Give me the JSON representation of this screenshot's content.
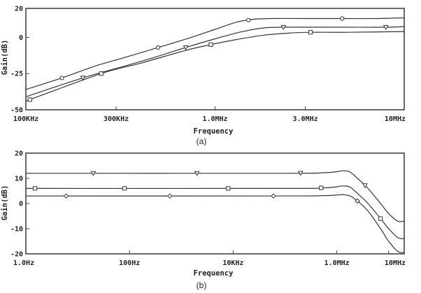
{
  "chart_data": [
    {
      "type": "line",
      "caption": "(a)",
      "xlabel": "Frequency",
      "ylabel": "Gain(dB)",
      "xscale": "log",
      "xlim": [
        100000,
        10000000
      ],
      "ylim": [
        -50,
        20
      ],
      "xticks": [
        {
          "v": 100000,
          "label": "100KHz"
        },
        {
          "v": 300000,
          "label": "300KHz"
        },
        {
          "v": 1000000,
          "label": "1.0MHz"
        },
        {
          "v": 3000000,
          "label": "3.0MHz"
        },
        {
          "v": 10000000,
          "label": "10MHz"
        }
      ],
      "yticks": [
        {
          "v": 20,
          "label": "20"
        },
        {
          "v": 0,
          "label": "0"
        },
        {
          "v": -25,
          "label": "-25"
        },
        {
          "v": -50,
          "label": "-50"
        }
      ],
      "series": [
        {
          "marker": "circle",
          "x": [
            100000,
            155000,
            230000,
            340000,
            500000,
            750000,
            1000000,
            1300000,
            1600000,
            2000000,
            3000000,
            4700000,
            7000000,
            10000000
          ],
          "y": [
            -36,
            -28,
            -20,
            -13.5,
            -7,
            0,
            5.5,
            10.5,
            12.5,
            13,
            13,
            13,
            13,
            13.5
          ],
          "markers_at": [
            155000,
            500000,
            1500000,
            4700000
          ]
        },
        {
          "marker": "triangle",
          "x": [
            100000,
            200000,
            350000,
            500000,
            700000,
            1000000,
            1400000,
            1800000,
            2300000,
            3000000,
            5000000,
            8000000,
            10000000
          ],
          "y": [
            -41,
            -28,
            -19,
            -13,
            -7,
            -1,
            4,
            6.5,
            7,
            7,
            7,
            7,
            7.5
          ],
          "markers_at": [
            200000,
            700000,
            2300000,
            8000000
          ]
        },
        {
          "marker": "square",
          "x": [
            100000,
            250000,
            400000,
            700000,
            950000,
            1300000,
            1800000,
            2500000,
            3200000,
            5000000,
            10000000
          ],
          "y": [
            -44,
            -25,
            -18,
            -9,
            -5,
            -1.5,
            1.5,
            3,
            3.5,
            3.5,
            4
          ],
          "markers_at": [
            105000,
            250000,
            950000,
            3200000
          ]
        }
      ]
    },
    {
      "type": "line",
      "caption": "(b)",
      "xlabel": "Frequency",
      "ylabel": "Gain(dB)",
      "xscale": "log",
      "xlim": [
        1,
        20000000
      ],
      "ylim": [
        -20,
        20
      ],
      "xticks": [
        {
          "v": 1,
          "label": "1.0Hz"
        },
        {
          "v": 100,
          "label": "100Hz"
        },
        {
          "v": 10000,
          "label": "10KHz"
        },
        {
          "v": 1000000,
          "label": "1.0MHz"
        },
        {
          "v": 10000000,
          "label": "10MHz"
        }
      ],
      "yticks": [
        {
          "v": 20,
          "label": "20"
        },
        {
          "v": 10,
          "label": "10"
        },
        {
          "v": 0,
          "label": "0"
        },
        {
          "v": -10,
          "label": "-10"
        },
        {
          "v": -20,
          "label": "-20"
        }
      ],
      "series": [
        {
          "marker": "triangle",
          "x": [
            1,
            100000,
            500000,
            900000,
            1300000,
            1800000,
            2500000,
            4000000,
            7000000,
            10000000,
            15000000,
            20000000
          ],
          "y": [
            12,
            12,
            12.2,
            12.5,
            13,
            12.5,
            10,
            6,
            0,
            -4,
            -7,
            -7
          ],
          "markers_at": [
            20,
            2000,
            200000,
            3500000
          ]
        },
        {
          "marker": "square",
          "x": [
            1,
            100000,
            500000,
            900000,
            1300000,
            1800000,
            2500000,
            4000000,
            7000000,
            10000000,
            15000000,
            20000000
          ],
          "y": [
            6,
            6,
            6.2,
            6.5,
            7,
            6.5,
            4,
            0,
            -6,
            -10,
            -13.5,
            -14
          ],
          "markers_at": [
            1.5,
            80,
            8000,
            500000,
            7000000
          ]
        },
        {
          "marker": "diamond",
          "x": [
            1,
            100000,
            500000,
            900000,
            1300000,
            1800000,
            2500000,
            4000000,
            7000000,
            10000000,
            15000000,
            20000000
          ],
          "y": [
            3,
            3,
            3.1,
            3.3,
            3.5,
            3,
            1,
            -3,
            -10,
            -15,
            -19,
            -19.5
          ],
          "markers_at": [
            6,
            600,
            60000,
            2500000
          ]
        }
      ]
    }
  ]
}
